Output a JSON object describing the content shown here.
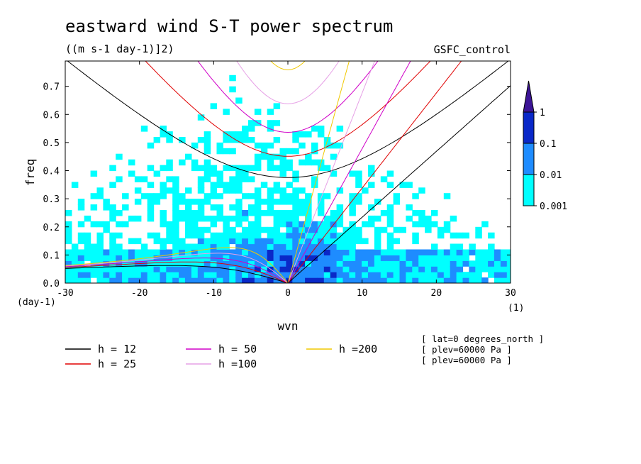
{
  "chart_data": {
    "type": "contour",
    "title": "eastward wind S-T power spectrum",
    "subtitle": "((m s-1 day-1)]2)",
    "model_label": "GSFC_control",
    "xlabel": "wvn",
    "ylabel": "freq",
    "x_unit": "(1)",
    "y_unit": "(day-1)",
    "xlim": [
      -30,
      30
    ],
    "ylim": [
      0,
      0.79
    ],
    "x_ticks": [
      -30,
      -20,
      -10,
      0,
      10,
      20,
      30
    ],
    "x_tick_labels": [
      "-30",
      "-20",
      "-10",
      "0",
      "10",
      "20",
      "30"
    ],
    "y_ticks": [
      0,
      0.1,
      0.2,
      0.3,
      0.4,
      0.5,
      0.6,
      0.7
    ],
    "y_tick_labels": [
      "0.0",
      "0.1",
      "0.2",
      "0.3",
      "0.4",
      "0.5",
      "0.6",
      "0.7"
    ],
    "colorbar": {
      "levels": [
        "0.001",
        "0.01",
        "0.1",
        "1"
      ],
      "colors": [
        "#00ffff",
        "#1e8cff",
        "#0a28c8",
        "#3c1496"
      ],
      "extend": "max"
    },
    "dispersion_curves": [
      {
        "label": "h = 12",
        "h": 12,
        "color": "#000000"
      },
      {
        "label": "h = 25",
        "h": 25,
        "color": "#e00000"
      },
      {
        "label": "h = 50",
        "h": 50,
        "color": "#d000c8"
      },
      {
        "label": "h =100",
        "h": 100,
        "color": "#e6a0e6"
      },
      {
        "label": "h =200",
        "h": 200,
        "color": "#f0c800"
      }
    ],
    "metadata_lines": [
      "[ lat=0 degrees_north ]",
      "[ plev=60000 Pa ]",
      "[ plev=60000 Pa ]"
    ]
  }
}
